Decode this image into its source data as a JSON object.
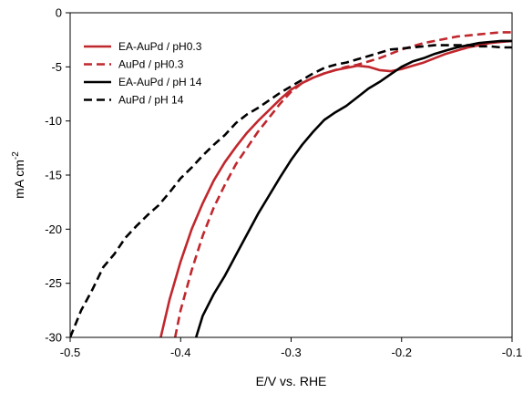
{
  "chart_data": {
    "type": "line",
    "xlabel": "E/V vs. RHE",
    "ylabel_main": "mA cm",
    "ylabel_sup": "-2",
    "xlim": [
      -0.5,
      -0.1
    ],
    "ylim": [
      -30,
      0
    ],
    "xticks": [
      -0.5,
      -0.4,
      -0.3,
      -0.2,
      -0.1
    ],
    "xtick_labels": [
      "-0.5",
      "-0.4",
      "-0.3",
      "-0.2",
      "-0.1"
    ],
    "yticks": [
      0,
      -5,
      -10,
      -15,
      -20,
      -25,
      -30
    ],
    "ytick_labels": [
      "0",
      "-5",
      "-10",
      "-15",
      "-20",
      "-25",
      "-30"
    ],
    "grid": false,
    "legend_position": "top-left",
    "series": [
      {
        "name": "EA-AuPd / pH0.3",
        "color": "#c0272d",
        "dash": "solid",
        "x": [
          -0.418,
          -0.41,
          -0.4,
          -0.39,
          -0.38,
          -0.37,
          -0.36,
          -0.35,
          -0.34,
          -0.33,
          -0.32,
          -0.31,
          -0.3,
          -0.29,
          -0.28,
          -0.27,
          -0.26,
          -0.25,
          -0.24,
          -0.23,
          -0.22,
          -0.21,
          -0.2,
          -0.19,
          -0.18,
          -0.17,
          -0.16,
          -0.15,
          -0.14,
          -0.13,
          -0.12,
          -0.11,
          -0.1
        ],
        "values": [
          -30,
          -26.5,
          -23.0,
          -20.0,
          -17.6,
          -15.5,
          -13.8,
          -12.4,
          -11.1,
          -10.0,
          -9.0,
          -8.0,
          -7.1,
          -6.5,
          -6.0,
          -5.6,
          -5.3,
          -5.1,
          -4.9,
          -5.0,
          -5.3,
          -5.4,
          -5.2,
          -4.9,
          -4.6,
          -4.2,
          -3.8,
          -3.5,
          -3.2,
          -3.0,
          -2.8,
          -2.7,
          -2.6
        ]
      },
      {
        "name": "AuPd / pH0.3",
        "color": "#c0272d",
        "dash": "dashed",
        "x": [
          -0.405,
          -0.4,
          -0.39,
          -0.38,
          -0.37,
          -0.36,
          -0.35,
          -0.34,
          -0.33,
          -0.32,
          -0.31,
          -0.3,
          -0.29,
          -0.28,
          -0.27,
          -0.26,
          -0.25,
          -0.24,
          -0.23,
          -0.22,
          -0.21,
          -0.2,
          -0.19,
          -0.18,
          -0.17,
          -0.16,
          -0.15,
          -0.14,
          -0.13,
          -0.12,
          -0.11,
          -0.1
        ],
        "values": [
          -30,
          -27.5,
          -23.8,
          -20.6,
          -18.0,
          -15.9,
          -14.0,
          -12.5,
          -11.0,
          -9.7,
          -8.4,
          -7.3,
          -6.5,
          -6.0,
          -5.6,
          -5.3,
          -5.0,
          -4.8,
          -4.5,
          -4.2,
          -3.8,
          -3.4,
          -3.1,
          -2.8,
          -2.6,
          -2.4,
          -2.2,
          -2.1,
          -2.0,
          -1.9,
          -1.8,
          -1.8
        ]
      },
      {
        "name": "EA-AuPd / pH 14",
        "color": "#000000",
        "dash": "solid",
        "x": [
          -0.386,
          -0.38,
          -0.37,
          -0.36,
          -0.35,
          -0.34,
          -0.33,
          -0.32,
          -0.31,
          -0.3,
          -0.29,
          -0.28,
          -0.27,
          -0.26,
          -0.25,
          -0.24,
          -0.23,
          -0.22,
          -0.21,
          -0.2,
          -0.19,
          -0.18,
          -0.17,
          -0.16,
          -0.15,
          -0.14,
          -0.13,
          -0.12,
          -0.11,
          -0.1
        ],
        "values": [
          -30,
          -28.0,
          -26.0,
          -24.3,
          -22.4,
          -20.5,
          -18.6,
          -16.9,
          -15.2,
          -13.6,
          -12.2,
          -11.0,
          -9.9,
          -9.2,
          -8.6,
          -7.8,
          -7.0,
          -6.4,
          -5.7,
          -5.0,
          -4.5,
          -4.2,
          -3.8,
          -3.5,
          -3.2,
          -3.0,
          -2.8,
          -2.7,
          -2.6,
          -2.6
        ]
      },
      {
        "name": "AuPd / pH 14",
        "color": "#000000",
        "dash": "dashed",
        "x": [
          -0.5,
          -0.49,
          -0.48,
          -0.47,
          -0.46,
          -0.45,
          -0.44,
          -0.43,
          -0.42,
          -0.41,
          -0.4,
          -0.39,
          -0.38,
          -0.37,
          -0.36,
          -0.35,
          -0.34,
          -0.33,
          -0.32,
          -0.31,
          -0.3,
          -0.29,
          -0.28,
          -0.27,
          -0.26,
          -0.25,
          -0.24,
          -0.23,
          -0.22,
          -0.21,
          -0.2,
          -0.19,
          -0.18,
          -0.17,
          -0.16,
          -0.15,
          -0.14,
          -0.13,
          -0.12,
          -0.11,
          -0.1
        ],
        "values": [
          -30,
          -27.5,
          -25.6,
          -23.5,
          -22.3,
          -20.8,
          -19.7,
          -18.7,
          -17.8,
          -16.6,
          -15.3,
          -14.3,
          -13.2,
          -12.2,
          -11.3,
          -10.2,
          -9.4,
          -8.8,
          -8.1,
          -7.4,
          -6.8,
          -6.2,
          -5.6,
          -5.1,
          -4.8,
          -4.6,
          -4.3,
          -4.0,
          -3.7,
          -3.4,
          -3.3,
          -3.2,
          -3.1,
          -3.0,
          -3.0,
          -3.0,
          -3.0,
          -3.1,
          -3.1,
          -3.2,
          -3.2
        ]
      }
    ]
  }
}
